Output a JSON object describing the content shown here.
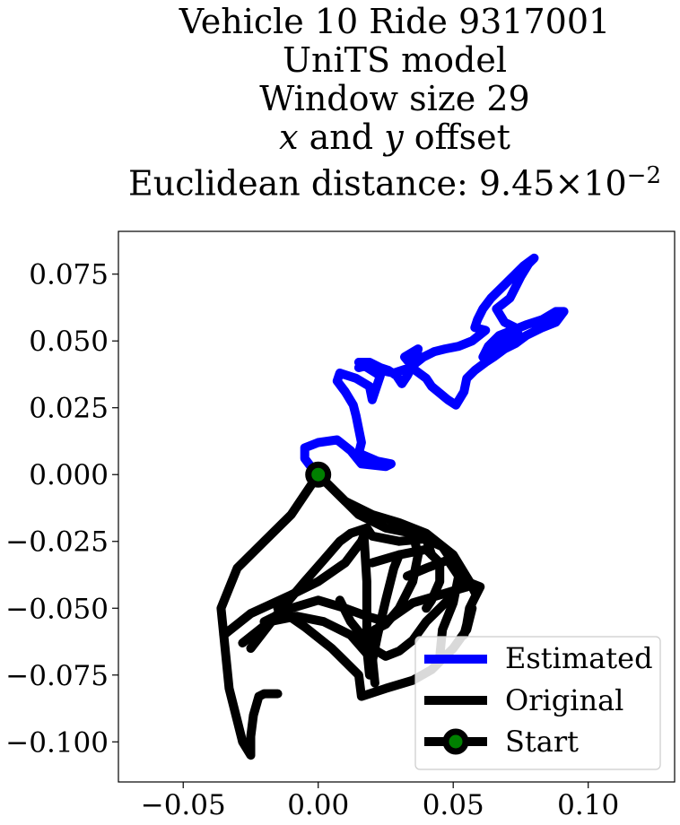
{
  "title": {
    "line1": "Vehicle 10 Ride 9317001",
    "line2": "UniTS model",
    "line3": "Window size 29",
    "line4_x": "x",
    "line4_and": " and ",
    "line4_y": "y",
    "line4_rest": " offset",
    "line5_prefix": "Euclidean distance: 9.45",
    "line5_times": "×",
    "line5_base": "10",
    "line5_exp": "−2"
  },
  "chart_data": {
    "type": "line",
    "xlim": [
      -0.074,
      0.132
    ],
    "ylim": [
      -0.115,
      0.091
    ],
    "xticks": [
      -0.05,
      0.0,
      0.05,
      0.1
    ],
    "xtick_labels": [
      "−0.05",
      "0.00",
      "0.05",
      "0.10"
    ],
    "yticks": [
      0.075,
      0.05,
      0.025,
      0.0,
      -0.025,
      -0.05,
      -0.075,
      -0.1
    ],
    "ytick_labels": [
      "0.075",
      "0.050",
      "0.025",
      "0.000",
      "−0.025",
      "−0.050",
      "−0.075",
      "−0.100"
    ],
    "legend_position": "lower right",
    "series": [
      {
        "name": "Estimated",
        "color": "#0000ff",
        "points": [
          [
            0.0,
            0.0
          ],
          [
            -0.002,
            0.002
          ],
          [
            -0.005,
            0.006
          ],
          [
            -0.005,
            0.01
          ],
          [
            0.0,
            0.012
          ],
          [
            0.007,
            0.013
          ],
          [
            0.012,
            0.009
          ],
          [
            0.016,
            0.004
          ],
          [
            0.025,
            0.003
          ],
          [
            0.027,
            0.004
          ],
          [
            0.022,
            0.005
          ],
          [
            0.015,
            0.008
          ],
          [
            0.016,
            0.012
          ],
          [
            0.015,
            0.017
          ],
          [
            0.014,
            0.022
          ],
          [
            0.013,
            0.026
          ],
          [
            0.01,
            0.031
          ],
          [
            0.007,
            0.035
          ],
          [
            0.008,
            0.038
          ],
          [
            0.014,
            0.036
          ],
          [
            0.019,
            0.033
          ],
          [
            0.02,
            0.028
          ],
          [
            0.022,
            0.034
          ],
          [
            0.023,
            0.037
          ],
          [
            0.015,
            0.042
          ],
          [
            0.019,
            0.042
          ],
          [
            0.023,
            0.04
          ],
          [
            0.026,
            0.039
          ],
          [
            0.029,
            0.037
          ],
          [
            0.031,
            0.034
          ],
          [
            0.033,
            0.037
          ],
          [
            0.036,
            0.043
          ],
          [
            0.037,
            0.047
          ],
          [
            0.032,
            0.044
          ],
          [
            0.036,
            0.039
          ],
          [
            0.04,
            0.036
          ],
          [
            0.042,
            0.033
          ],
          [
            0.048,
            0.028
          ],
          [
            0.051,
            0.026
          ],
          [
            0.054,
            0.031
          ],
          [
            0.055,
            0.036
          ],
          [
            0.058,
            0.039
          ],
          [
            0.062,
            0.042
          ],
          [
            0.065,
            0.044
          ],
          [
            0.069,
            0.047
          ],
          [
            0.073,
            0.049
          ],
          [
            0.077,
            0.052
          ],
          [
            0.083,
            0.055
          ],
          [
            0.088,
            0.057
          ],
          [
            0.091,
            0.061
          ],
          [
            0.088,
            0.061
          ],
          [
            0.083,
            0.058
          ],
          [
            0.077,
            0.056
          ],
          [
            0.072,
            0.054
          ],
          [
            0.067,
            0.052
          ],
          [
            0.063,
            0.048
          ],
          [
            0.061,
            0.044
          ],
          [
            0.065,
            0.048
          ],
          [
            0.07,
            0.051
          ],
          [
            0.074,
            0.053
          ],
          [
            0.073,
            0.055
          ],
          [
            0.069,
            0.057
          ],
          [
            0.066,
            0.062
          ],
          [
            0.071,
            0.066
          ],
          [
            0.075,
            0.074
          ],
          [
            0.078,
            0.079
          ],
          [
            0.08,
            0.081
          ],
          [
            0.076,
            0.078
          ],
          [
            0.072,
            0.074
          ],
          [
            0.068,
            0.07
          ],
          [
            0.064,
            0.066
          ],
          [
            0.061,
            0.062
          ],
          [
            0.059,
            0.058
          ],
          [
            0.058,
            0.055
          ],
          [
            0.062,
            0.054
          ],
          [
            0.057,
            0.05
          ],
          [
            0.052,
            0.048
          ],
          [
            0.047,
            0.047
          ],
          [
            0.043,
            0.046
          ],
          [
            0.039,
            0.044
          ],
          [
            0.034,
            0.04
          ],
          [
            0.028,
            0.038
          ],
          [
            0.023,
            0.039
          ],
          [
            0.019,
            0.041
          ],
          [
            0.015,
            0.04
          ]
        ]
      },
      {
        "name": "Original",
        "color": "#000000",
        "segments": [
          [
            [
              0.0,
              0.0
            ],
            [
              0.01,
              -0.01
            ],
            [
              0.02,
              -0.015
            ],
            [
              0.03,
              -0.018
            ],
            [
              0.04,
              -0.022
            ],
            [
              0.05,
              -0.03
            ],
            [
              0.056,
              -0.04
            ],
            [
              0.058,
              -0.044
            ]
          ],
          [
            [
              0.0,
              0.0
            ],
            [
              0.015,
              -0.015
            ],
            [
              0.025,
              -0.02
            ],
            [
              0.035,
              -0.022
            ],
            [
              0.046,
              -0.027
            ],
            [
              0.052,
              -0.036
            ],
            [
              0.055,
              -0.042
            ]
          ],
          [
            [
              0.0,
              0.0
            ],
            [
              -0.01,
              -0.015
            ],
            [
              -0.02,
              -0.025
            ],
            [
              -0.03,
              -0.035
            ],
            [
              -0.036,
              -0.05
            ],
            [
              -0.035,
              -0.06
            ],
            [
              -0.033,
              -0.08
            ],
            [
              -0.03,
              -0.092
            ],
            [
              -0.028,
              -0.1
            ],
            [
              -0.025,
              -0.105
            ],
            [
              -0.025,
              -0.098
            ],
            [
              -0.024,
              -0.09
            ],
            [
              -0.022,
              -0.083
            ],
            [
              -0.02,
              -0.082
            ],
            [
              -0.015,
              -0.082
            ]
          ],
          [
            [
              -0.035,
              -0.06
            ],
            [
              -0.025,
              -0.052
            ],
            [
              -0.01,
              -0.045
            ],
            [
              0.0,
              -0.04
            ],
            [
              0.01,
              -0.033
            ],
            [
              0.016,
              -0.025
            ],
            [
              0.018,
              -0.02
            ],
            [
              0.02,
              -0.023
            ],
            [
              0.03,
              -0.025
            ],
            [
              0.04,
              -0.024
            ],
            [
              0.042,
              -0.03
            ]
          ],
          [
            [
              -0.025,
              -0.065
            ],
            [
              -0.015,
              -0.052
            ],
            [
              -0.005,
              -0.04
            ],
            [
              0.002,
              -0.032
            ],
            [
              0.008,
              -0.025
            ],
            [
              0.012,
              -0.022
            ],
            [
              0.018,
              -0.02
            ]
          ],
          [
            [
              -0.02,
              -0.055
            ],
            [
              -0.01,
              -0.05
            ],
            [
              0.0,
              -0.047
            ],
            [
              0.01,
              -0.05
            ],
            [
              0.018,
              -0.053
            ],
            [
              0.025,
              -0.055
            ],
            [
              0.035,
              -0.048
            ],
            [
              0.045,
              -0.045
            ],
            [
              0.055,
              -0.042
            ]
          ],
          [
            [
              -0.015,
              -0.05
            ],
            [
              -0.005,
              -0.057
            ],
            [
              0.005,
              -0.065
            ],
            [
              0.015,
              -0.075
            ],
            [
              0.016,
              -0.083
            ],
            [
              0.025,
              -0.08
            ],
            [
              0.035,
              -0.077
            ],
            [
              0.042,
              -0.073
            ],
            [
              0.05,
              -0.065
            ],
            [
              0.055,
              -0.058
            ],
            [
              0.057,
              -0.05
            ]
          ],
          [
            [
              0.017,
              -0.024
            ],
            [
              0.018,
              -0.04
            ],
            [
              0.018,
              -0.055
            ],
            [
              0.018,
              -0.065
            ],
            [
              0.019,
              -0.075
            ],
            [
              0.022,
              -0.06
            ],
            [
              0.025,
              -0.047
            ],
            [
              0.028,
              -0.035
            ],
            [
              0.03,
              -0.03
            ]
          ],
          [
            [
              0.008,
              -0.047
            ],
            [
              0.012,
              -0.055
            ],
            [
              0.016,
              -0.06
            ],
            [
              0.02,
              -0.065
            ],
            [
              0.025,
              -0.068
            ],
            [
              0.03,
              -0.066
            ],
            [
              0.035,
              -0.062
            ],
            [
              0.04,
              -0.055
            ],
            [
              0.045,
              -0.05
            ],
            [
              0.05,
              -0.045
            ]
          ],
          [
            [
              0.035,
              -0.022
            ],
            [
              0.037,
              -0.03
            ],
            [
              0.035,
              -0.04
            ],
            [
              0.03,
              -0.05
            ],
            [
              0.025,
              -0.056
            ],
            [
              0.021,
              -0.058
            ],
            [
              0.02,
              -0.068
            ],
            [
              0.021,
              -0.078
            ]
          ],
          [
            [
              -0.028,
              -0.063
            ],
            [
              -0.018,
              -0.055
            ],
            [
              -0.008,
              -0.053
            ],
            [
              0.002,
              -0.055
            ],
            [
              0.012,
              -0.06
            ],
            [
              0.018,
              -0.067
            ]
          ],
          [
            [
              0.033,
              -0.038
            ],
            [
              0.04,
              -0.035
            ],
            [
              0.048,
              -0.032
            ],
            [
              0.052,
              -0.038
            ],
            [
              0.05,
              -0.048
            ],
            [
              0.046,
              -0.058
            ],
            [
              0.045,
              -0.068
            ]
          ],
          [
            [
              0.02,
              -0.033
            ],
            [
              0.03,
              -0.03
            ],
            [
              0.04,
              -0.028
            ],
            [
              0.045,
              -0.033
            ],
            [
              0.045,
              -0.04
            ],
            [
              0.042,
              -0.047
            ],
            [
              0.04,
              -0.05
            ]
          ],
          [
            [
              0.055,
              -0.04
            ],
            [
              0.06,
              -0.042
            ],
            [
              0.058,
              -0.046
            ],
            [
              0.056,
              -0.05
            ],
            [
              0.055,
              -0.056
            ],
            [
              0.054,
              -0.06
            ]
          ]
        ]
      },
      {
        "name": "Start",
        "marker": "circle",
        "edge_color": "#000000",
        "face_color": "#008000",
        "points": [
          [
            0.0,
            0.0
          ]
        ]
      }
    ]
  }
}
